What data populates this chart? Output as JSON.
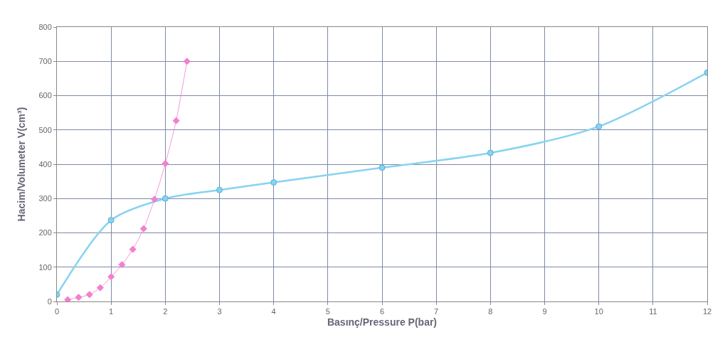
{
  "chart_data": {
    "type": "line",
    "xlabel": "Basınç/Pressure P(bar)",
    "ylabel": "Hacim/Volumeter V(cm³)",
    "xlim": [
      0,
      12
    ],
    "xticks": [
      0,
      1,
      2,
      3,
      4,
      5,
      6,
      7,
      8,
      9,
      10,
      11,
      12
    ],
    "ylim": [
      0,
      800
    ],
    "yticks": [
      0,
      100,
      200,
      300,
      400,
      500,
      600,
      700,
      800
    ],
    "grid": true,
    "series": [
      {
        "color": "#87d3f0",
        "marker": "circle",
        "x": [
          0,
          1,
          2,
          3,
          4,
          6,
          8,
          10,
          12
        ],
        "values": [
          20,
          237,
          300,
          325,
          347,
          390,
          433,
          510,
          667
        ]
      },
      {
        "color": "#f37fcf",
        "marker": "diamond",
        "x": [
          0.2,
          0.4,
          0.6,
          0.8,
          1,
          1.2,
          1.4,
          1.6,
          1.8,
          2,
          2.2,
          2.4
        ],
        "values": [
          5,
          12,
          20,
          40,
          72,
          107,
          152,
          212,
          298,
          402,
          527,
          700
        ]
      }
    ]
  }
}
